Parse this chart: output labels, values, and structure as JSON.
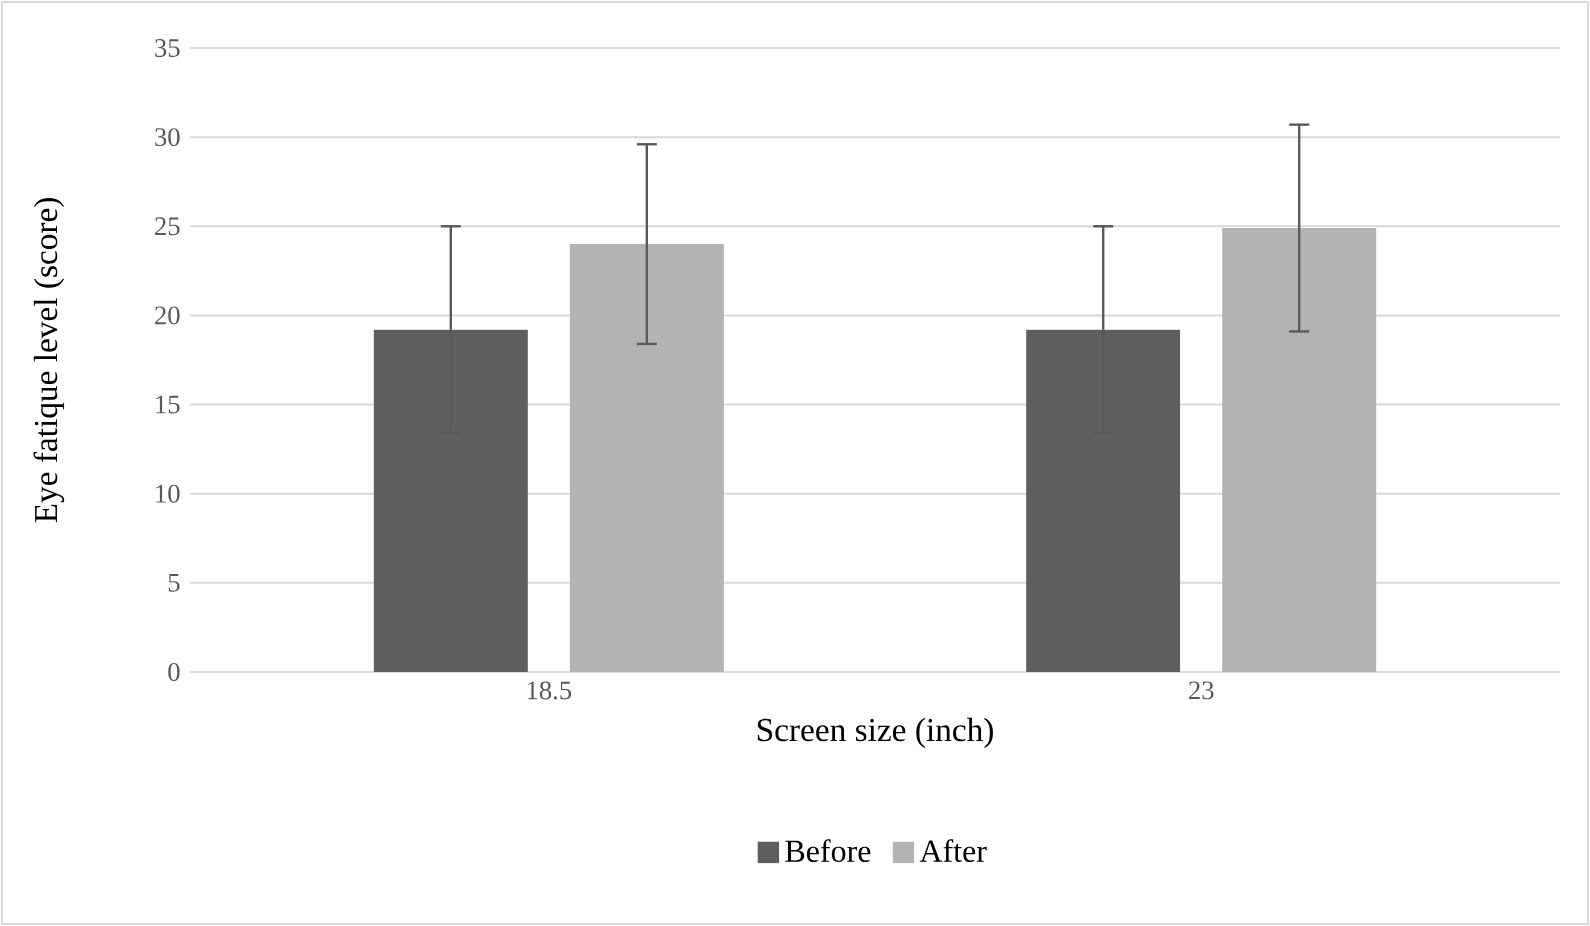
{
  "chart_data": {
    "type": "bar",
    "xlabel": "Screen size (inch)",
    "ylabel": "Eye fatique level (score)",
    "categories": [
      "18.5",
      "23"
    ],
    "series": [
      {
        "name": "Before",
        "color": "#5e5e5e",
        "values": [
          19.2,
          19.2
        ],
        "errors": [
          5.8,
          5.8
        ]
      },
      {
        "name": "After",
        "color": "#b3b3b3",
        "values": [
          24.0,
          24.9
        ],
        "errors": [
          5.6,
          5.8
        ]
      }
    ],
    "ylim": [
      0,
      35
    ],
    "yticks": [
      0,
      5,
      10,
      15,
      20,
      25,
      30,
      35
    ],
    "grid": "y",
    "legend": "bottom"
  }
}
